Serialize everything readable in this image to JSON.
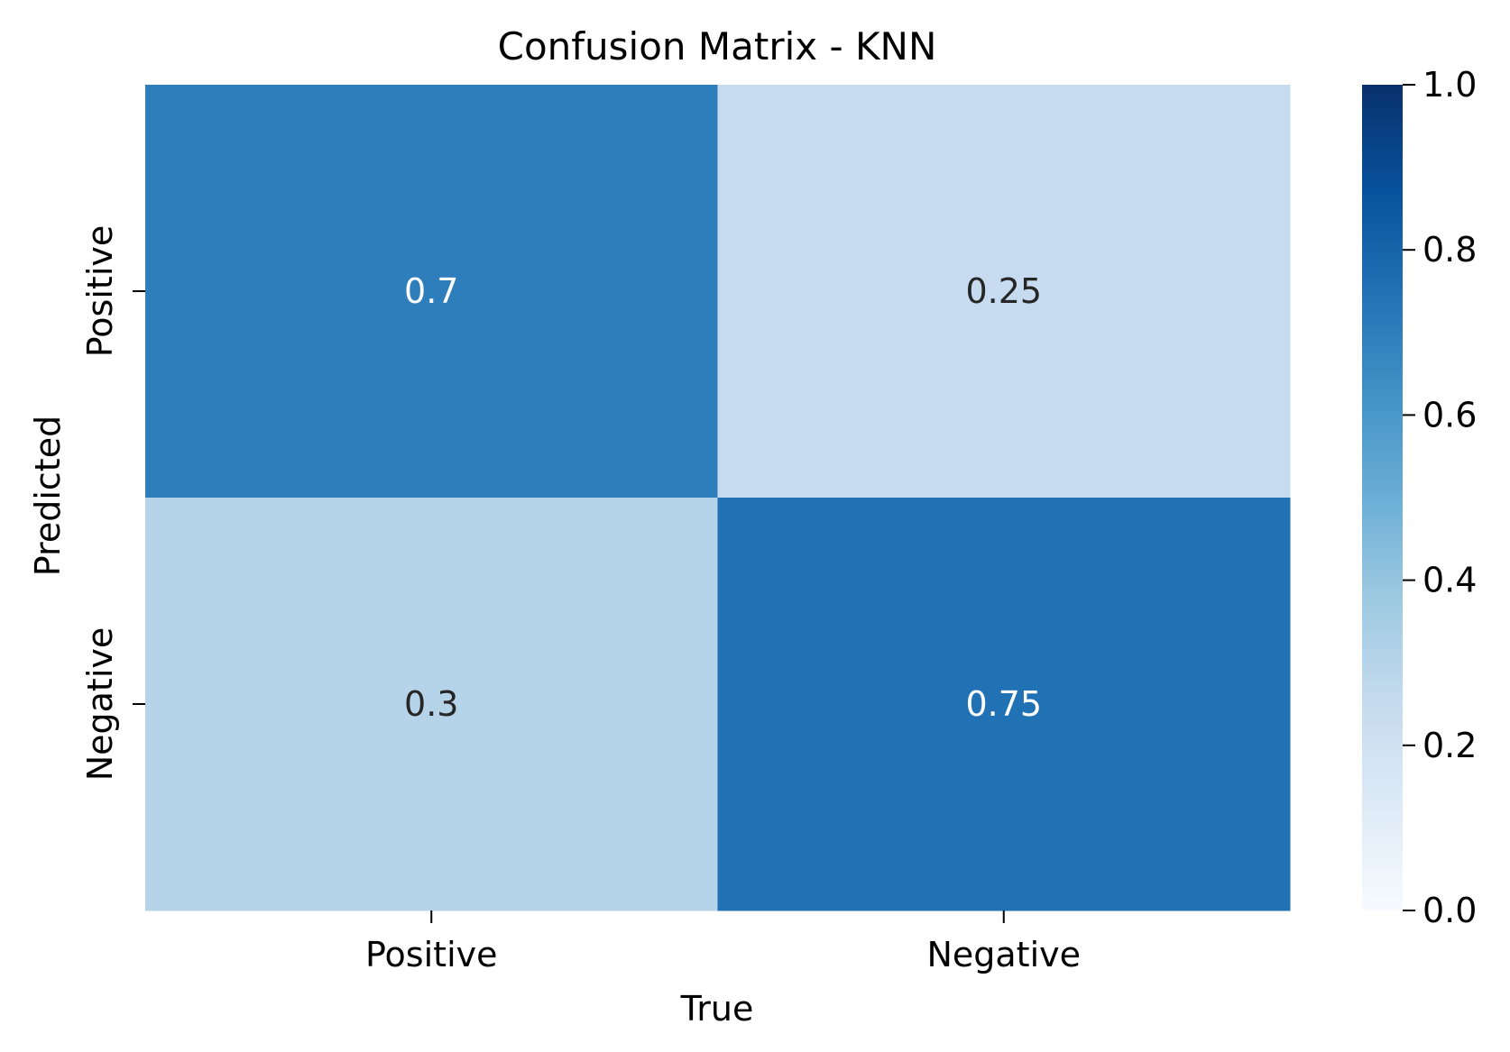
{
  "chart_data": {
    "type": "heatmap",
    "title": "Confusion Matrix - KNN",
    "xlabel": "True",
    "ylabel": "Predicted",
    "x_categories": [
      "Positive",
      "Negative"
    ],
    "y_categories": [
      "Positive",
      "Negative"
    ],
    "values": [
      [
        0.7,
        0.25
      ],
      [
        0.3,
        0.75
      ]
    ],
    "value_labels": [
      [
        "0.7",
        "0.25"
      ],
      [
        "0.3",
        "0.75"
      ]
    ],
    "colorbar": {
      "range": [
        0.0,
        1.0
      ],
      "ticks": [
        "0.0",
        "0.2",
        "0.4",
        "0.6",
        "0.8",
        "1.0"
      ],
      "colormap": "Blues",
      "stops": [
        "#f7fbff",
        "#deebf7",
        "#c6dbef",
        "#9ecae1",
        "#6baed6",
        "#4292c6",
        "#2171b5",
        "#08519c",
        "#08306b"
      ]
    },
    "grid": false
  }
}
